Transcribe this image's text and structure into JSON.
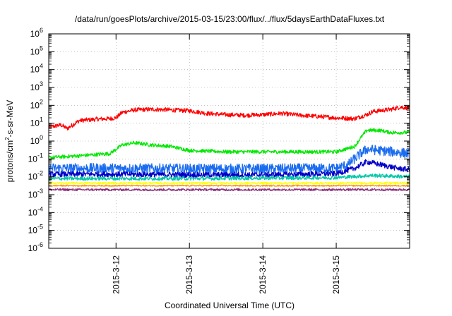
{
  "chart_data": {
    "type": "line",
    "title": "/data/run/goesPlots/archive/2015-03-15/23:00/flux/../flux/5daysEarthDataFluxes.txt",
    "xlabel": "Coordinated Universal Time (UTC)",
    "ylabel": "protons/cm2-s-sr-MeV",
    "ylabel_parts": {
      "base": "protons/cm",
      "sup": "2",
      "rest": "-s-sr-MeV"
    },
    "y_scale": "log",
    "ylim": [
      1e-06,
      1000000.0
    ],
    "xlim": [
      "2015-03-11T02:00",
      "2015-03-16T00:00"
    ],
    "x_ticks": [
      {
        "x": "2015-03-12T00:00",
        "label": "2015-3-12"
      },
      {
        "x": "2015-03-13T00:00",
        "label": "2015-3-13"
      },
      {
        "x": "2015-03-14T00:00",
        "label": "2015-3-14"
      },
      {
        "x": "2015-03-15T00:00",
        "label": "2015-3-15"
      }
    ],
    "y_ticks": [
      {
        "exp": "-6"
      },
      {
        "exp": "-5"
      },
      {
        "exp": "-4"
      },
      {
        "exp": "-3"
      },
      {
        "exp": "-2"
      },
      {
        "exp": "-1"
      },
      {
        "exp": "0"
      },
      {
        "exp": "1"
      },
      {
        "exp": "2"
      },
      {
        "exp": "3"
      },
      {
        "exp": "4"
      },
      {
        "exp": "5"
      },
      {
        "exp": "6"
      }
    ],
    "grid": true,
    "legend": "none",
    "series": [
      {
        "color": "#ff0000",
        "noise": 0.12,
        "points": [
          [
            "2015-03-11T02:00",
            6
          ],
          [
            "2015-03-11T06:00",
            8
          ],
          [
            "2015-03-11T08:00",
            5
          ],
          [
            "2015-03-11T12:00",
            14
          ],
          [
            "2015-03-11T18:00",
            17
          ],
          [
            "2015-03-11T22:00",
            18
          ],
          [
            "2015-03-12T00:00",
            20
          ],
          [
            "2015-03-12T02:00",
            40
          ],
          [
            "2015-03-12T06:00",
            55
          ],
          [
            "2015-03-12T12:00",
            60
          ],
          [
            "2015-03-12T18:00",
            55
          ],
          [
            "2015-03-13T00:00",
            50
          ],
          [
            "2015-03-13T06:00",
            35
          ],
          [
            "2015-03-13T12:00",
            30
          ],
          [
            "2015-03-13T18:00",
            28
          ],
          [
            "2015-03-14T00:00",
            30
          ],
          [
            "2015-03-14T06:00",
            35
          ],
          [
            "2015-03-14T12:00",
            28
          ],
          [
            "2015-03-14T18:00",
            24
          ],
          [
            "2015-03-15T00:00",
            20
          ],
          [
            "2015-03-15T06:00",
            18
          ],
          [
            "2015-03-15T10:00",
            30
          ],
          [
            "2015-03-15T12:00",
            45
          ],
          [
            "2015-03-15T18:00",
            60
          ],
          [
            "2015-03-15T21:00",
            80
          ],
          [
            "2015-03-16T00:00",
            70
          ]
        ]
      },
      {
        "color": "#00e800",
        "noise": 0.1,
        "points": [
          [
            "2015-03-11T02:00",
            0.12
          ],
          [
            "2015-03-11T12:00",
            0.15
          ],
          [
            "2015-03-11T22:00",
            0.2
          ],
          [
            "2015-03-12T02:00",
            0.6
          ],
          [
            "2015-03-12T06:00",
            0.8
          ],
          [
            "2015-03-12T12:00",
            0.6
          ],
          [
            "2015-03-12T18:00",
            0.5
          ],
          [
            "2015-03-13T00:00",
            0.3
          ],
          [
            "2015-03-13T12:00",
            0.25
          ],
          [
            "2015-03-14T00:00",
            0.25
          ],
          [
            "2015-03-14T12:00",
            0.25
          ],
          [
            "2015-03-15T00:00",
            0.25
          ],
          [
            "2015-03-15T06:00",
            0.5
          ],
          [
            "2015-03-15T08:00",
            1.5
          ],
          [
            "2015-03-15T10:00",
            4
          ],
          [
            "2015-03-15T14:00",
            4
          ],
          [
            "2015-03-15T18:00",
            3
          ],
          [
            "2015-03-16T00:00",
            3
          ]
        ]
      },
      {
        "color": "#1a6cf0",
        "noise": 0.28,
        "points": [
          [
            "2015-03-11T02:00",
            0.03
          ],
          [
            "2015-03-12T00:00",
            0.03
          ],
          [
            "2015-03-13T00:00",
            0.028
          ],
          [
            "2015-03-14T00:00",
            0.028
          ],
          [
            "2015-03-15T00:00",
            0.03
          ],
          [
            "2015-03-15T04:00",
            0.05
          ],
          [
            "2015-03-15T08:00",
            0.2
          ],
          [
            "2015-03-15T10:00",
            0.35
          ],
          [
            "2015-03-15T14:00",
            0.3
          ],
          [
            "2015-03-16T00:00",
            0.2
          ]
        ]
      },
      {
        "color": "#0000c8",
        "noise": 0.15,
        "points": [
          [
            "2015-03-11T02:00",
            0.014
          ],
          [
            "2015-03-12T00:00",
            0.014
          ],
          [
            "2015-03-13T00:00",
            0.013
          ],
          [
            "2015-03-14T00:00",
            0.013
          ],
          [
            "2015-03-15T00:00",
            0.015
          ],
          [
            "2015-03-15T06:00",
            0.03
          ],
          [
            "2015-03-15T10:00",
            0.07
          ],
          [
            "2015-03-15T14:00",
            0.05
          ],
          [
            "2015-03-15T20:00",
            0.03
          ],
          [
            "2015-03-16T00:00",
            0.025
          ]
        ]
      },
      {
        "color": "#00c8a8",
        "noise": 0.1,
        "points": [
          [
            "2015-03-11T02:00",
            0.008
          ],
          [
            "2015-03-13T00:00",
            0.008
          ],
          [
            "2015-03-15T00:00",
            0.009
          ],
          [
            "2015-03-15T12:00",
            0.012
          ],
          [
            "2015-03-16T00:00",
            0.01
          ]
        ]
      },
      {
        "color": "#ffff00",
        "noise": 0.05,
        "points": [
          [
            "2015-03-11T02:00",
            0.0045
          ],
          [
            "2015-03-16T00:00",
            0.0045
          ]
        ]
      },
      {
        "color": "#ff9900",
        "noise": 0.04,
        "points": [
          [
            "2015-03-11T02:00",
            0.0032
          ],
          [
            "2015-03-16T00:00",
            0.0032
          ]
        ]
      },
      {
        "color": "#8b2e7a",
        "noise": 0.06,
        "points": [
          [
            "2015-03-11T02:00",
            0.0019
          ],
          [
            "2015-03-16T00:00",
            0.0019
          ]
        ]
      }
    ]
  }
}
